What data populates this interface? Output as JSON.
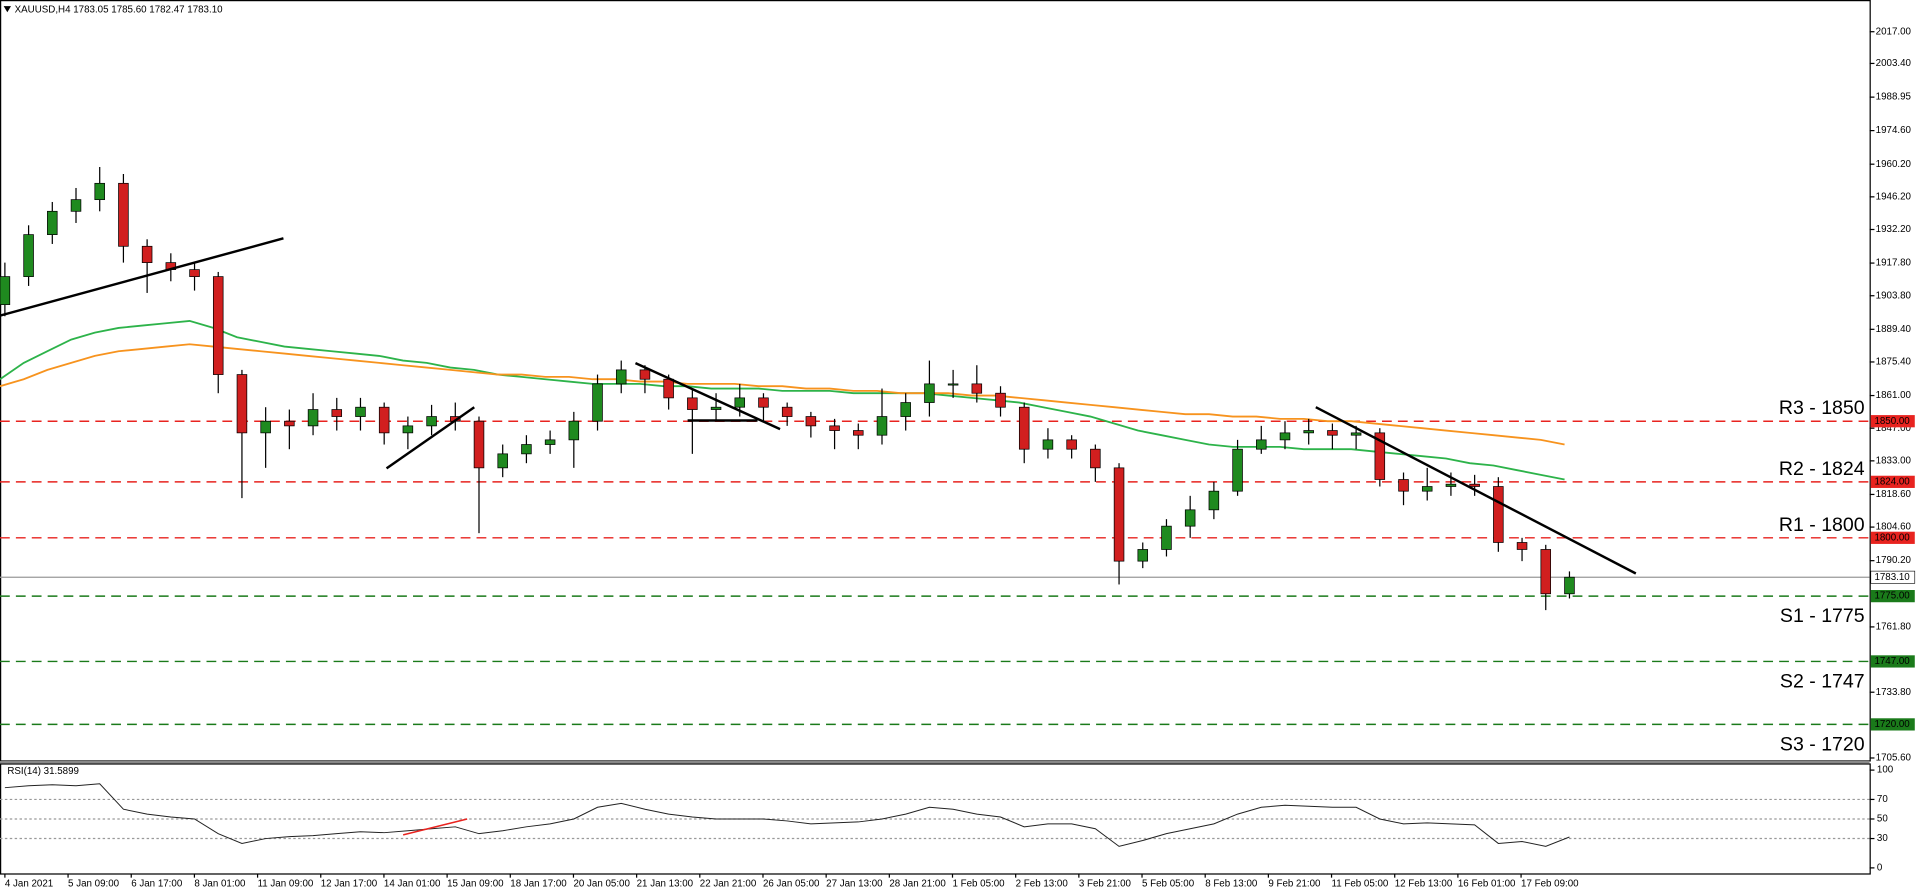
{
  "chart_data": {
    "type": "candlestick",
    "title": "XAUUSD,H4  1783.05 1785.60 1782.47 1783.10",
    "x_labels": [
      "4 Jan 2021",
      "5 Jan 09:00",
      "6 Jan 17:00",
      "8 Jan 01:00",
      "11 Jan 09:00",
      "12 Jan 17:00",
      "14 Jan 01:00",
      "15 Jan 09:00",
      "18 Jan 17:00",
      "20 Jan 05:00",
      "21 Jan 13:00",
      "22 Jan 21:00",
      "26 Jan 05:00",
      "27 Jan 13:00",
      "28 Jan 21:00",
      "1 Feb 05:00",
      "2 Feb 13:00",
      "3 Feb 21:00",
      "5 Feb 05:00",
      "8 Feb 13:00",
      "9 Feb 21:00",
      "11 Feb 05:00",
      "12 Feb 13:00",
      "16 Feb 01:00",
      "17 Feb 09:00"
    ],
    "open": [
      1900,
      1912,
      1930,
      1940,
      1945,
      1952,
      1925,
      1918,
      1915,
      1912,
      1870,
      1845,
      1850,
      1848,
      1855,
      1852,
      1856,
      1845,
      1848,
      1852,
      1850,
      1830,
      1836,
      1840,
      1842,
      1850,
      1866,
      1872,
      1868,
      1860,
      1855,
      1856,
      1860,
      1856,
      1852,
      1848,
      1846,
      1844,
      1852,
      1858,
      1866,
      1866,
      1862,
      1856,
      1838,
      1842,
      1838,
      1830,
      1790,
      1795,
      1805,
      1812,
      1820,
      1838,
      1842,
      1845,
      1846,
      1844,
      1845,
      1825,
      1820,
      1822,
      1823,
      1822,
      1798,
      1795,
      1776
    ],
    "high": [
      1918,
      1934,
      1944,
      1950,
      1959,
      1956,
      1928,
      1922,
      1918,
      1914,
      1872,
      1856,
      1855,
      1862,
      1860,
      1860,
      1858,
      1852,
      1857,
      1858,
      1852,
      1840,
      1844,
      1846,
      1854,
      1870,
      1876,
      1874,
      1870,
      1864,
      1862,
      1866,
      1862,
      1858,
      1854,
      1851,
      1849,
      1864,
      1862,
      1876,
      1872,
      1874,
      1865,
      1858,
      1847,
      1844,
      1840,
      1832,
      1798,
      1808,
      1818,
      1824,
      1842,
      1848,
      1850,
      1851,
      1849,
      1848,
      1847,
      1828,
      1830,
      1828,
      1827,
      1826,
      1800,
      1797,
      1785.6
    ],
    "low": [
      1895,
      1908,
      1926,
      1935,
      1940,
      1918,
      1905,
      1910,
      1906,
      1862,
      1817,
      1830,
      1838,
      1844,
      1846,
      1846,
      1840,
      1838,
      1844,
      1846,
      1802,
      1826,
      1832,
      1836,
      1830,
      1846,
      1862,
      1862,
      1855,
      1836,
      1850,
      1852,
      1850,
      1848,
      1843,
      1838,
      1838,
      1840,
      1846,
      1852,
      1860,
      1858,
      1852,
      1832,
      1834,
      1834,
      1824,
      1780,
      1787,
      1792,
      1800,
      1808,
      1818,
      1836,
      1838,
      1840,
      1838,
      1838,
      1822,
      1814,
      1816,
      1818,
      1818,
      1794,
      1790,
      1769,
      1774
    ],
    "close": [
      1912,
      1930,
      1940,
      1945,
      1952,
      1925,
      1918,
      1915,
      1912,
      1870,
      1845,
      1850,
      1848,
      1855,
      1852,
      1856,
      1845,
      1848,
      1852,
      1850,
      1830,
      1836,
      1840,
      1842,
      1850,
      1866,
      1872,
      1868,
      1860,
      1855,
      1856,
      1860,
      1856,
      1852,
      1848,
      1846,
      1844,
      1852,
      1858,
      1866,
      1866,
      1862,
      1856,
      1838,
      1842,
      1838,
      1830,
      1790,
      1795,
      1805,
      1812,
      1820,
      1838,
      1842,
      1845,
      1846,
      1844,
      1845,
      1825,
      1820,
      1822,
      1823,
      1822,
      1798,
      1795,
      1776,
      1783.1
    ],
    "up_color": "#1f8a1f",
    "down_color": "#d11f1f",
    "ylim": [
      1704.6,
      2030.6
    ],
    "yticks": [
      {
        "value": 2017,
        "label": "2017.00"
      },
      {
        "value": 2003.4,
        "label": "2003.40"
      },
      {
        "value": 1988.95,
        "label": "1988.95"
      },
      {
        "value": 1974.6,
        "label": "1974.60"
      },
      {
        "value": 1960.2,
        "label": "1960.20"
      },
      {
        "value": 1946.2,
        "label": "1946.20"
      },
      {
        "value": 1932.2,
        "label": "1932.20"
      },
      {
        "value": 1917.8,
        "label": "1917.80"
      },
      {
        "value": 1903.8,
        "label": "1903.80"
      },
      {
        "value": 1889.4,
        "label": "1889.40"
      },
      {
        "value": 1875.4,
        "label": "1875.40"
      },
      {
        "value": 1861,
        "label": "1861.00"
      },
      {
        "value": 1847,
        "label": "1847.00"
      },
      {
        "value": 1833,
        "label": "1833.00"
      },
      {
        "value": 1818.6,
        "label": "1818.60"
      },
      {
        "value": 1804.6,
        "label": "1804.60"
      },
      {
        "value": 1790.2,
        "label": "1790.20"
      },
      {
        "value": 1761.8,
        "label": "1761.80"
      },
      {
        "value": 1733.8,
        "label": "1733.80"
      },
      {
        "value": 1705.6,
        "label": "1705.60"
      }
    ],
    "moving_averages": [
      {
        "color": "#2db34a",
        "values": [
          1868,
          1875,
          1880,
          1885,
          1888,
          1890,
          1891,
          1892,
          1893,
          1890,
          1886,
          1884,
          1882,
          1881,
          1880,
          1879,
          1878,
          1876,
          1875,
          1873,
          1872,
          1870,
          1869,
          1868,
          1867,
          1866,
          1866,
          1866,
          1865,
          1865,
          1864,
          1864,
          1864,
          1863,
          1863,
          1863,
          1862,
          1862,
          1862,
          1862,
          1861,
          1860,
          1859,
          1858,
          1856,
          1854,
          1852,
          1849,
          1846,
          1844,
          1842,
          1840,
          1839,
          1839,
          1839,
          1838,
          1838,
          1838,
          1837,
          1836,
          1835,
          1834,
          1832,
          1831,
          1829,
          1827,
          1825
        ]
      },
      {
        "color": "#f7931e",
        "values": [
          1865,
          1868,
          1872,
          1875,
          1878,
          1880,
          1881,
          1882,
          1883,
          1882,
          1881,
          1880,
          1879,
          1878,
          1877,
          1876,
          1875,
          1874,
          1873,
          1872,
          1871,
          1870,
          1870,
          1869,
          1869,
          1868,
          1868,
          1867,
          1867,
          1866,
          1866,
          1866,
          1865,
          1865,
          1864,
          1864,
          1863,
          1863,
          1862,
          1862,
          1862,
          1861,
          1861,
          1860,
          1859,
          1858,
          1857,
          1856,
          1855,
          1854,
          1853,
          1853,
          1852,
          1852,
          1851,
          1851,
          1850,
          1850,
          1849,
          1848,
          1847,
          1846,
          1845,
          1844,
          1843,
          1842,
          1840
        ]
      }
    ],
    "trendlines": [
      {
        "color": "#000000",
        "from": [
          -0.2,
          1895.3
        ],
        "to": [
          11.75,
          1928.4
        ]
      },
      {
        "color": "#000000",
        "from": [
          16.1,
          1829.8
        ],
        "to": [
          19.8,
          1856
        ]
      },
      {
        "color": "#000000",
        "from": [
          26.6,
          1874.9
        ],
        "to": [
          32.7,
          1846.6
        ]
      },
      {
        "color": "#000000",
        "from": [
          28.8,
          1850.3
        ],
        "to": [
          31.75,
          1850.3
        ]
      },
      {
        "color": "#000000",
        "from": [
          55.3,
          1856
        ],
        "to": [
          68.8,
          1784.7
        ]
      }
    ],
    "levels": [
      {
        "label": "R3 - 1850",
        "value": 1850,
        "value_label": "1850.00",
        "color": "#e8231f"
      },
      {
        "label": "R2 - 1824",
        "value": 1824,
        "value_label": "1824.00",
        "color": "#e8231f"
      },
      {
        "label": "R1 - 1800",
        "value": 1800,
        "value_label": "1800.00",
        "color": "#e8231f"
      },
      {
        "label": "S1 - 1775",
        "value": 1775,
        "value_label": "1775.00",
        "color": "#1a7a1a"
      },
      {
        "label": "S2 - 1747",
        "value": 1747,
        "value_label": "1747.00",
        "color": "#1a7a1a"
      },
      {
        "label": "S3 - 1720",
        "value": 1720,
        "value_label": "1720.00",
        "color": "#1a7a1a"
      }
    ],
    "last_price": {
      "value": 1783.1,
      "label": "1783.10"
    },
    "rsi": {
      "title": "RSI(14) 31.5899",
      "color": "#222222",
      "values": [
        82,
        84,
        85,
        84,
        86,
        60,
        55,
        52,
        50,
        35,
        25,
        30,
        32,
        33,
        35,
        37,
        36,
        38,
        40,
        42,
        35,
        38,
        42,
        45,
        50,
        62,
        66,
        60,
        55,
        52,
        50,
        50,
        50,
        48,
        45,
        46,
        47,
        50,
        55,
        62,
        60,
        55,
        52,
        42,
        45,
        45,
        40,
        22,
        28,
        35,
        40,
        45,
        55,
        62,
        64,
        63,
        62,
        62,
        50,
        45,
        46,
        45,
        44,
        25,
        27,
        22,
        31.59
      ],
      "ylim": [
        -6.25,
        106.25
      ],
      "yticks": [
        100,
        70,
        50,
        30,
        0
      ],
      "trendline": {
        "color": "#e8231f",
        "from": [
          16.8,
          33.75
        ],
        "to": [
          19.5,
          50
        ]
      }
    }
  }
}
